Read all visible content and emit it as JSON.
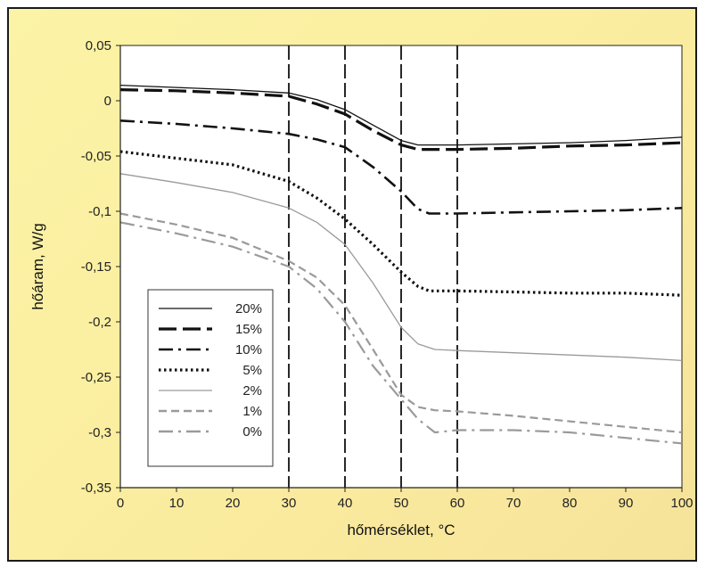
{
  "chart_data": {
    "type": "line",
    "title": "",
    "xlabel": "hőmérséklet, °C",
    "ylabel": "hőáram, W/g",
    "xlim": [
      0,
      100
    ],
    "ylim": [
      -0.35,
      0.05
    ],
    "x_ticks": [
      0,
      10,
      20,
      30,
      40,
      50,
      60,
      70,
      80,
      90,
      100
    ],
    "x_tick_labels": [
      "0",
      "10",
      "20",
      "30",
      "40",
      "50",
      "60",
      "70",
      "80",
      "90",
      "100"
    ],
    "y_ticks": [
      0.05,
      0,
      -0.05,
      -0.1,
      -0.15,
      -0.2,
      -0.25,
      -0.3,
      -0.35
    ],
    "y_tick_labels": [
      "0,05",
      "0",
      "-0,05",
      "-0,1",
      "-0,15",
      "-0,2",
      "-0,25",
      "-0,3",
      "-0,35"
    ],
    "grid": false,
    "vertical_reference_lines": [
      30,
      40,
      50,
      60
    ],
    "legend_position": "bottom-left",
    "series": [
      {
        "name": "20%",
        "color": "#111111",
        "dash": "solid",
        "points": [
          [
            0,
            0.014
          ],
          [
            10,
            0.012
          ],
          [
            20,
            0.01
          ],
          [
            30,
            0.007
          ],
          [
            35,
            0.001
          ],
          [
            40,
            -0.008
          ],
          [
            45,
            -0.022
          ],
          [
            50,
            -0.036
          ],
          [
            53,
            -0.04
          ],
          [
            60,
            -0.04
          ],
          [
            70,
            -0.039
          ],
          [
            80,
            -0.038
          ],
          [
            90,
            -0.036
          ],
          [
            100,
            -0.033
          ]
        ]
      },
      {
        "name": "15%",
        "color": "#111111",
        "dash": "long-dash",
        "points": [
          [
            0,
            0.01
          ],
          [
            10,
            0.009
          ],
          [
            20,
            0.007
          ],
          [
            30,
            0.004
          ],
          [
            35,
            -0.003
          ],
          [
            40,
            -0.012
          ],
          [
            45,
            -0.027
          ],
          [
            50,
            -0.04
          ],
          [
            53,
            -0.044
          ],
          [
            60,
            -0.044
          ],
          [
            70,
            -0.043
          ],
          [
            80,
            -0.041
          ],
          [
            90,
            -0.04
          ],
          [
            100,
            -0.038
          ]
        ]
      },
      {
        "name": "10%",
        "color": "#111111",
        "dash": "dash-dot",
        "points": [
          [
            0,
            -0.018
          ],
          [
            10,
            -0.021
          ],
          [
            20,
            -0.025
          ],
          [
            30,
            -0.03
          ],
          [
            35,
            -0.035
          ],
          [
            40,
            -0.042
          ],
          [
            45,
            -0.06
          ],
          [
            50,
            -0.082
          ],
          [
            53,
            -0.098
          ],
          [
            55,
            -0.102
          ],
          [
            60,
            -0.102
          ],
          [
            70,
            -0.101
          ],
          [
            80,
            -0.1
          ],
          [
            90,
            -0.099
          ],
          [
            100,
            -0.097
          ]
        ]
      },
      {
        "name": "5%",
        "color": "#111111",
        "dash": "dotted",
        "points": [
          [
            0,
            -0.046
          ],
          [
            10,
            -0.052
          ],
          [
            20,
            -0.058
          ],
          [
            30,
            -0.073
          ],
          [
            35,
            -0.088
          ],
          [
            40,
            -0.107
          ],
          [
            45,
            -0.13
          ],
          [
            50,
            -0.155
          ],
          [
            53,
            -0.168
          ],
          [
            55,
            -0.172
          ],
          [
            60,
            -0.172
          ],
          [
            70,
            -0.173
          ],
          [
            80,
            -0.174
          ],
          [
            90,
            -0.174
          ],
          [
            100,
            -0.176
          ]
        ]
      },
      {
        "name": "2%",
        "color": "#9a9a9a",
        "dash": "solid",
        "points": [
          [
            0,
            -0.066
          ],
          [
            10,
            -0.074
          ],
          [
            20,
            -0.083
          ],
          [
            30,
            -0.097
          ],
          [
            35,
            -0.11
          ],
          [
            40,
            -0.13
          ],
          [
            45,
            -0.165
          ],
          [
            50,
            -0.205
          ],
          [
            53,
            -0.22
          ],
          [
            56,
            -0.225
          ],
          [
            60,
            -0.226
          ],
          [
            70,
            -0.228
          ],
          [
            80,
            -0.23
          ],
          [
            90,
            -0.232
          ],
          [
            100,
            -0.235
          ]
        ]
      },
      {
        "name": "1%",
        "color": "#9a9a9a",
        "dash": "dash",
        "points": [
          [
            0,
            -0.102
          ],
          [
            10,
            -0.112
          ],
          [
            20,
            -0.124
          ],
          [
            30,
            -0.145
          ],
          [
            35,
            -0.16
          ],
          [
            40,
            -0.185
          ],
          [
            45,
            -0.225
          ],
          [
            50,
            -0.266
          ],
          [
            53,
            -0.277
          ],
          [
            56,
            -0.28
          ],
          [
            60,
            -0.281
          ],
          [
            70,
            -0.285
          ],
          [
            80,
            -0.29
          ],
          [
            90,
            -0.295
          ],
          [
            100,
            -0.3
          ]
        ]
      },
      {
        "name": "0%",
        "color": "#9a9a9a",
        "dash": "dash-dot",
        "points": [
          [
            0,
            -0.11
          ],
          [
            10,
            -0.12
          ],
          [
            20,
            -0.132
          ],
          [
            30,
            -0.15
          ],
          [
            35,
            -0.17
          ],
          [
            40,
            -0.2
          ],
          [
            45,
            -0.24
          ],
          [
            50,
            -0.27
          ],
          [
            53,
            -0.288
          ],
          [
            56,
            -0.3
          ],
          [
            60,
            -0.298
          ],
          [
            70,
            -0.298
          ],
          [
            80,
            -0.3
          ],
          [
            90,
            -0.305
          ],
          [
            100,
            -0.31
          ]
        ]
      }
    ]
  }
}
